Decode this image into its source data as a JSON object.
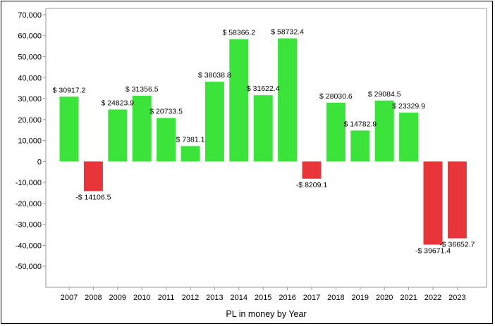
{
  "chart_data": {
    "type": "bar",
    "title": "",
    "xlabel": "PL in money by Year",
    "ylabel": "",
    "categories": [
      "2007",
      "2008",
      "2009",
      "2010",
      "2011",
      "2012",
      "2013",
      "2014",
      "2015",
      "2016",
      "2017",
      "2018",
      "2019",
      "2020",
      "2021",
      "2022",
      "2023"
    ],
    "values": [
      30917.2,
      -14106.5,
      24823.9,
      31356.5,
      20733.5,
      7381.1,
      38038.8,
      58366.2,
      31622.4,
      58732.4,
      -8209.1,
      28030.6,
      14782.9,
      29084.5,
      23329.9,
      -39671.4,
      -36652.7
    ],
    "data_labels": [
      "$ 30917.2",
      "-$ 14106.5",
      "$ 24823.9",
      "$ 31356.5",
      "$ 20733.5",
      "$ 7381.1",
      "$ 38038.8",
      "$ 58366.2",
      "$ 31622.4",
      "$ 58732.4",
      "-$ 8209.1",
      "$ 28030.6",
      "$ 14782.9",
      "$ 29084.5",
      "$ 23329.9",
      "-$ 39671.4",
      "-$ 36652.7"
    ],
    "ylim": [
      -60000,
      73000
    ],
    "yticks": [
      70000,
      60000,
      50000,
      40000,
      30000,
      20000,
      10000,
      0,
      -10000,
      -20000,
      -30000,
      -40000,
      -50000
    ],
    "ytick_labels": [
      "70,000",
      "60,000",
      "50,000",
      "40,000",
      "30,000",
      "20,000",
      "10,000",
      "0",
      "-10,000",
      "-20,000",
      "-30,000",
      "-40,000",
      "-50,000"
    ],
    "grid": false,
    "legend": "none",
    "colors": {
      "positive": "#3be33b",
      "negative": "#e8353a",
      "axis": "#999999",
      "text": "#000000"
    }
  }
}
